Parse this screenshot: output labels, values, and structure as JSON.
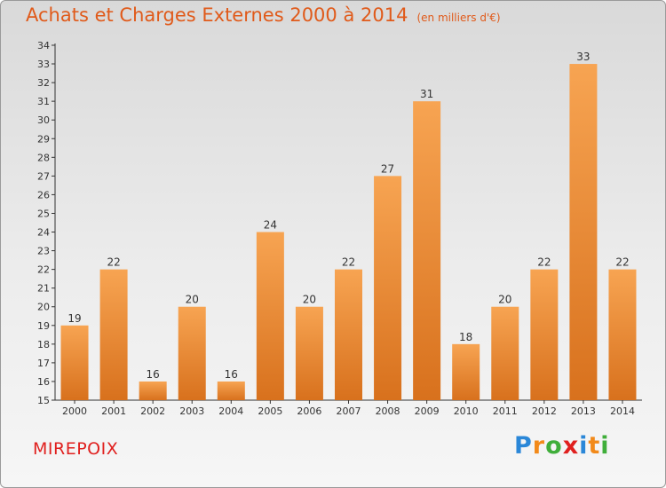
{
  "header": {
    "title": "Achats et Charges Externes 2000 à 2014",
    "unit": "(en milliers d'€)"
  },
  "footer": {
    "city": "MIREPOIX",
    "logo": "Proxiti",
    "logo_letters": [
      "P",
      "r",
      "o",
      "x",
      "i",
      "t",
      "i"
    ],
    "logo_colors": [
      "#2a87d8",
      "#f28a1a",
      "#3fae3a",
      "#e0201e",
      "#2a87d8",
      "#f28a1a",
      "#3fae3a"
    ]
  },
  "colors": {
    "bar_light": "#f7a452",
    "bar_dark": "#d8711d",
    "title": "#e05a1a",
    "city": "#e0201e",
    "axis": "#333333"
  },
  "chart_data": {
    "type": "bar",
    "title": "Achats et Charges Externes 2000 à 2014",
    "subtitle": "(en milliers d'€)",
    "xlabel": "",
    "ylabel": "",
    "ylim": [
      15,
      34
    ],
    "yticks": [
      15,
      16,
      17,
      18,
      19,
      20,
      21,
      22,
      23,
      24,
      25,
      26,
      27,
      28,
      29,
      30,
      31,
      32,
      33,
      34
    ],
    "grid": false,
    "categories": [
      "2000",
      "2001",
      "2002",
      "2003",
      "2004",
      "2005",
      "2006",
      "2007",
      "2008",
      "2009",
      "2010",
      "2011",
      "2012",
      "2013",
      "2014"
    ],
    "values": [
      19,
      22,
      16,
      20,
      16,
      24,
      20,
      22,
      27,
      31,
      18,
      20,
      22,
      33,
      22
    ],
    "data_labels": [
      "19",
      "22",
      "16",
      "20",
      "16",
      "24",
      "20",
      "22",
      "27",
      "31",
      "18",
      "20",
      "22",
      "33",
      "22"
    ]
  }
}
